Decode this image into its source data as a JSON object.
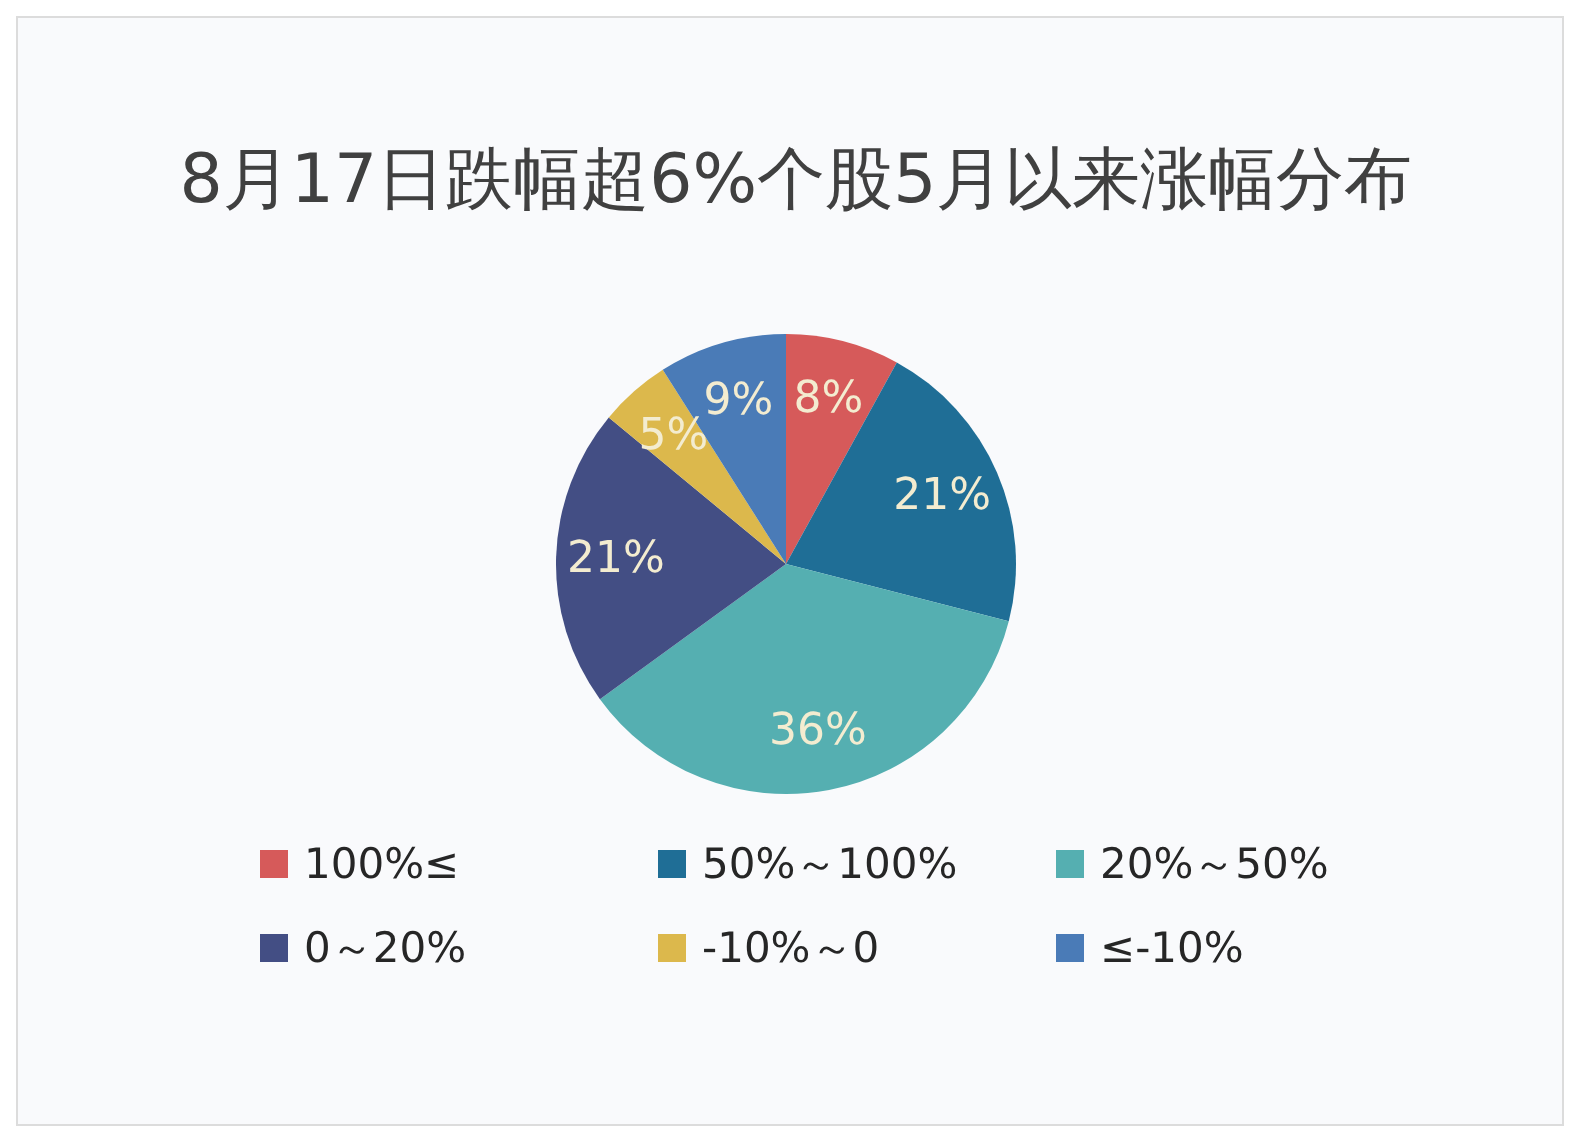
{
  "chart_data": {
    "type": "pie",
    "title": "8月17日跌幅超6%个股5月以来涨幅分布",
    "categories": [
      "100%≤",
      "50%～100%",
      "20%～50%",
      "0～20%",
      "-10%～0",
      "≤-10%"
    ],
    "values": [
      8,
      21,
      36,
      21,
      5,
      9
    ],
    "colors": [
      "#d65a5a",
      "#1f6e96",
      "#55afb1",
      "#434e84",
      "#dcb84c",
      "#4a7bb7"
    ],
    "value_labels": [
      "8%",
      "21%",
      "36%",
      "21%",
      "5%",
      "9%"
    ],
    "legend": "bottom"
  }
}
